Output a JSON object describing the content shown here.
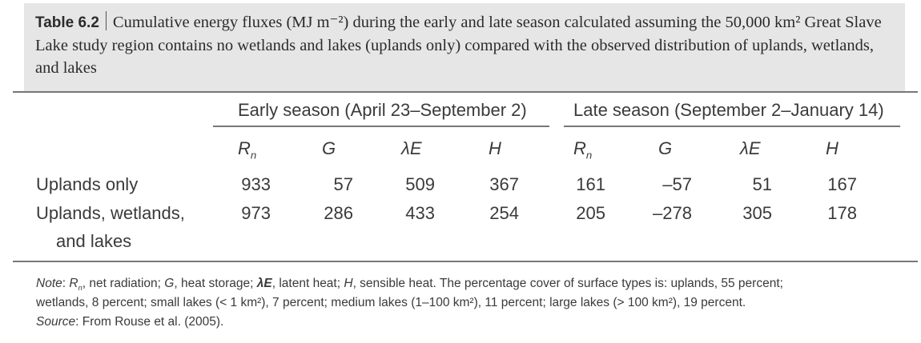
{
  "caption": {
    "label": "Table 6.2",
    "text": "Cumulative energy fluxes (MJ m⁻²) during the early and late season calculated assuming the 50,000 km² Great Slave Lake study region contains no wetlands and lakes (uplands only) compared with the observed distribution of uplands, wetlands, and lakes"
  },
  "groups": {
    "early": "Early season (April 23–September 2)",
    "late": "Late season (September 2–January 14)"
  },
  "columns": [
    "R",
    "G",
    "λE",
    "H",
    "R",
    "G",
    "λE",
    "H"
  ],
  "column_sub": "n",
  "rows": [
    {
      "label": "Uplands only",
      "label2": "",
      "values": [
        "933",
        "57",
        "509",
        "367",
        "161",
        "–57",
        "51",
        "167"
      ]
    },
    {
      "label": "Uplands, wetlands,",
      "label2": "and lakes",
      "values": [
        "973",
        "286",
        "433",
        "254",
        "205",
        "–278",
        "305",
        "178"
      ]
    }
  ],
  "notes": {
    "line1": "Note: Rₙ, net radiation; G, heat storage; λE, latent heat; H, sensible heat. The percentage cover of surface types is: uplands, 55 percent;",
    "line2": "wetlands, 8 percent; small lakes (< 1 km²), 7 percent; medium lakes (1–100 km²), 11 percent; large lakes (> 100 km²), 19 percent.",
    "line3": "Source: From Rouse et al. (2005)."
  }
}
